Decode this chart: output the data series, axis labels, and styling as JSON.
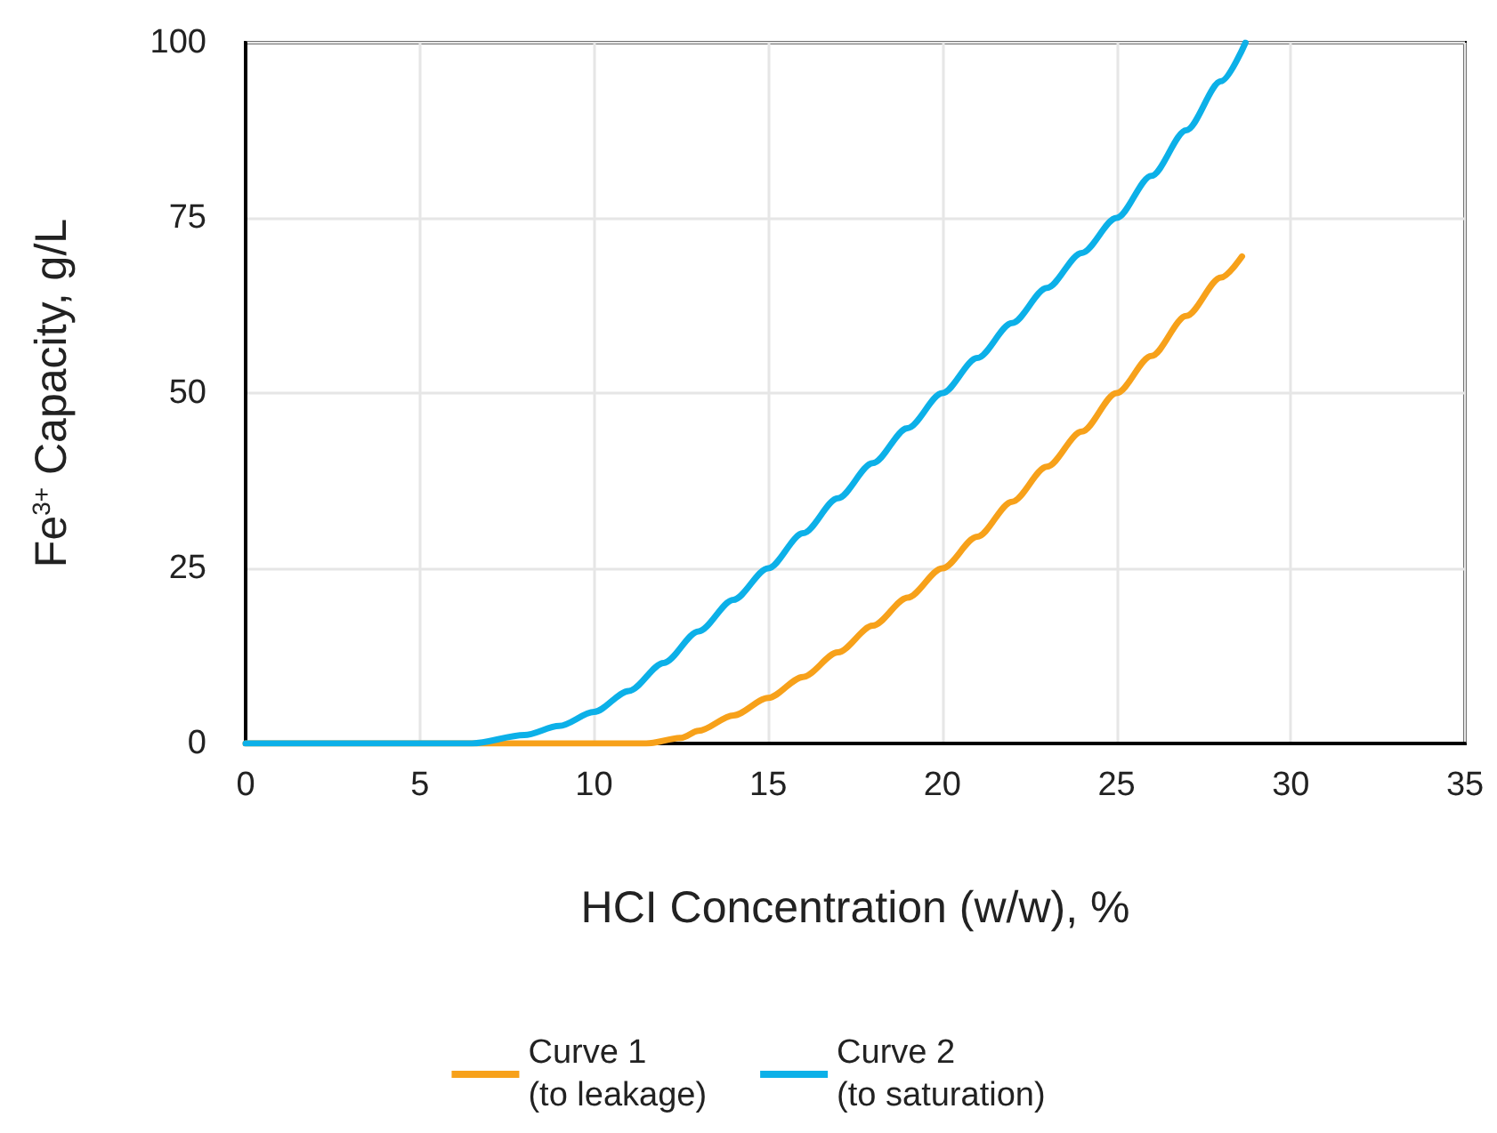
{
  "chart_data": {
    "type": "line",
    "xlabel": "HCI Concentration (w/w), %",
    "ylabel": "Fe$^{3+}$ Capacity, g/L",
    "xlim": [
      0,
      35
    ],
    "xticks": [
      0,
      5,
      10,
      15,
      20,
      25,
      30,
      35
    ],
    "ylim": [
      0,
      100
    ],
    "yticks": [
      0,
      25,
      50,
      75,
      100
    ],
    "grid": true,
    "legend": "bottom",
    "marker": "none",
    "series": [
      {
        "name": "Curve 1\n(to leakage)",
        "color": "#f7a11a",
        "x": [
          0,
          11.5,
          12.5,
          13,
          14,
          15,
          16,
          17,
          18,
          19,
          20,
          21,
          22,
          23,
          24,
          25,
          26,
          27,
          28,
          28.6
        ],
        "values": [
          0,
          0,
          0.8,
          1.8,
          4,
          6.5,
          9.5,
          13,
          16.8,
          20.8,
          25,
          29.5,
          34.5,
          39.5,
          44.5,
          50,
          55.3,
          61,
          66.5,
          69.5
        ]
      },
      {
        "name": "Curve 2\n(to saturation)",
        "color": "#0cb0e8",
        "x": [
          0,
          6.5,
          8,
          9,
          10,
          11,
          12,
          13,
          14,
          15,
          16,
          17,
          18,
          19,
          20,
          21,
          22,
          23,
          24,
          25,
          26,
          27,
          28,
          28.7
        ],
        "values": [
          0,
          0,
          1.2,
          2.5,
          4.5,
          7.5,
          11.5,
          16,
          20.5,
          25,
          30,
          35,
          40,
          45,
          50,
          55,
          60,
          65,
          70,
          75,
          81,
          87.5,
          94.5,
          100
        ]
      }
    ]
  }
}
